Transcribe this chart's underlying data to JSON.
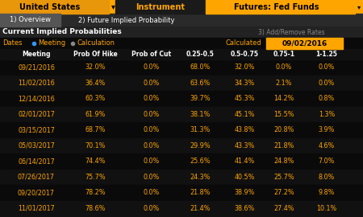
{
  "bg_color": "#0a0a0a",
  "orange": "#FFA500",
  "dark_orange": "#CC7000",
  "white": "#FFFFFF",
  "gray_text": "#aaaaaa",
  "top_bar": {
    "left_text": "United States",
    "left_bg": "#E8960A",
    "middle_text": "Instrument",
    "right_text": "Futures: Fed Funds",
    "bar_bg": "#FFA500"
  },
  "tabs": [
    "1) Overview",
    "2) Future Implied Probability"
  ],
  "tab_active_bg": "#555555",
  "tab_inactive_bg": "#333333",
  "section_title": "Current Implied Probabilities",
  "section_bg": "#222222",
  "add_remove": "3) Add/Remove Rates",
  "dates_label": "Dates",
  "meeting_label": "Meeting",
  "calc_label": "Calculation",
  "calculated_label": "Calculated",
  "date_value": "09/02/2016",
  "date_box_bg": "#FFA500",
  "col_headers": [
    "Meeting",
    "Prob Of Hike",
    "Prob of Cut",
    "0.25-0.5",
    "0.5-0.75",
    "0.75-1",
    "1-1.25"
  ],
  "col_header_bg": "#111111",
  "col_positions": [
    45,
    118,
    188,
    248,
    303,
    352,
    405
  ],
  "row_bg_even": "#0a0a0a",
  "row_bg_odd": "#111111",
  "rows": [
    [
      "09/21/2016",
      "32.0%",
      "0.0%",
      "68.0%",
      "32.0%",
      "0.0%",
      "0.0%"
    ],
    [
      "11/02/2016",
      "36.4%",
      "0.0%",
      "63.6%",
      "34.3%",
      "2.1%",
      "0.0%"
    ],
    [
      "12/14/2016",
      "60.3%",
      "0.0%",
      "39.7%",
      "45.3%",
      "14.2%",
      "0.8%"
    ],
    [
      "02/01/2017",
      "61.9%",
      "0.0%",
      "38.1%",
      "45.1%",
      "15.5%",
      "1.3%"
    ],
    [
      "03/15/2017",
      "68.7%",
      "0.0%",
      "31.3%",
      "43.8%",
      "20.8%",
      "3.9%"
    ],
    [
      "05/03/2017",
      "70.1%",
      "0.0%",
      "29.9%",
      "43.3%",
      "21.8%",
      "4.6%"
    ],
    [
      "06/14/2017",
      "74.4%",
      "0.0%",
      "25.6%",
      "41.4%",
      "24.8%",
      "7.0%"
    ],
    [
      "07/26/2017",
      "75.7%",
      "0.0%",
      "24.3%",
      "40.5%",
      "25.7%",
      "8.0%"
    ],
    [
      "09/20/2017",
      "78.2%",
      "0.0%",
      "21.8%",
      "38.9%",
      "27.2%",
      "9.8%"
    ],
    [
      "11/01/2017",
      "78.6%",
      "0.0%",
      "21.4%",
      "38.6%",
      "27.4%",
      "10.1%"
    ]
  ]
}
